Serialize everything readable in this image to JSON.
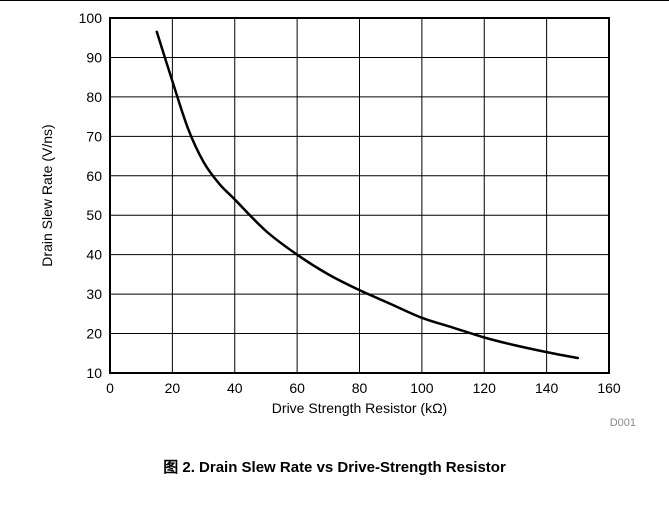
{
  "figure": {
    "caption": "图 2. Drain Slew Rate vs Drive-Strength Resistor",
    "figure_id": "D001"
  },
  "chart_data": {
    "type": "line",
    "title": "",
    "xlabel": "Drive Strength Resistor (kΩ)",
    "ylabel": "Drain Slew Rate (V/ns)",
    "xlim": [
      0,
      160
    ],
    "ylim": [
      10,
      100
    ],
    "xticks": [
      0,
      20,
      40,
      60,
      80,
      100,
      120,
      140,
      160
    ],
    "yticks": [
      10,
      20,
      30,
      40,
      50,
      60,
      70,
      80,
      90,
      100
    ],
    "grid": true,
    "series": [
      {
        "x": [
          15,
          20,
          25,
          30,
          35,
          40,
          50,
          60,
          70,
          80,
          90,
          100,
          110,
          120,
          130,
          140,
          150
        ],
        "y": [
          96.5,
          84,
          72,
          63.5,
          58,
          54,
          46,
          40,
          35,
          31,
          27.5,
          24,
          21.5,
          19,
          17,
          15.3,
          13.8
        ]
      }
    ]
  }
}
